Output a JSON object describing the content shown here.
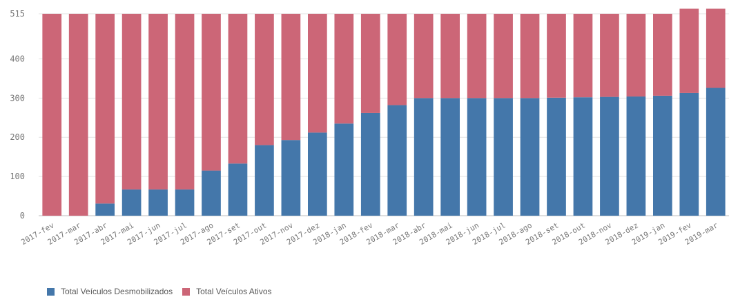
{
  "chart_data": {
    "type": "bar",
    "stacked": true,
    "categories": [
      "2017-fev",
      "2017-mar",
      "2017-abr",
      "2017-mai",
      "2017-jun",
      "2017-jul",
      "2017-ago",
      "2017-set",
      "2017-out",
      "2017-nov",
      "2017-dez",
      "2018-jan",
      "2018-fev",
      "2018-mar",
      "2018-abr",
      "2018-mai",
      "2018-jun",
      "2018-jul",
      "2018-ago",
      "2018-set",
      "2018-out",
      "2018-nov",
      "2018-dez",
      "2019-jan",
      "2019-fev",
      "2019-mar"
    ],
    "series": [
      {
        "name": "Total Veículos Desmobilizados",
        "color": "#4477aa",
        "values": [
          0,
          0,
          31,
          67,
          67,
          67,
          115,
          133,
          180,
          193,
          212,
          235,
          262,
          282,
          300,
          300,
          300,
          300,
          300,
          301,
          302,
          303,
          304,
          306,
          313,
          326
        ]
      },
      {
        "name": "Total Veículos Ativos",
        "color": "#cc6677",
        "values": [
          515,
          515,
          484,
          448,
          448,
          448,
          400,
          382,
          335,
          322,
          303,
          280,
          253,
          233,
          215,
          215,
          215,
          215,
          215,
          214,
          213,
          212,
          211,
          209,
          215,
          202
        ]
      }
    ],
    "yticks": [
      "0",
      "100",
      "200",
      "300",
      "400",
      "515"
    ],
    "ylim": [
      0,
      515
    ],
    "xlabel": "",
    "ylabel": "",
    "grid": true,
    "legend_position": "bottom-left"
  }
}
